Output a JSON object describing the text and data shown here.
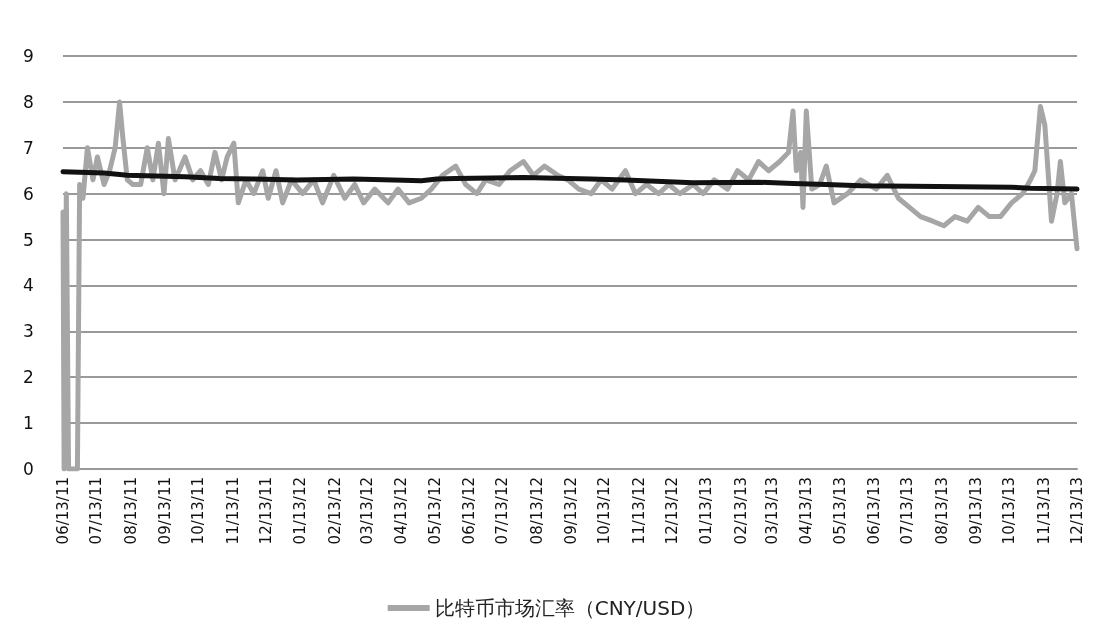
{
  "chart_data": {
    "type": "line",
    "legend": "bottom",
    "grid": "y",
    "marker": "none",
    "line_style": "solid",
    "ylim": [
      0,
      9
    ],
    "yticks": [
      0,
      1,
      2,
      3,
      4,
      5,
      6,
      7,
      8,
      9
    ],
    "xlim": [
      "2011-06-13",
      "2013-12-13"
    ],
    "xticks": [
      {
        "value": "2011-06-13",
        "label": "06/13/11"
      },
      {
        "value": "2011-07-13",
        "label": "07/13/11"
      },
      {
        "value": "2011-08-13",
        "label": "08/13/11"
      },
      {
        "value": "2011-09-13",
        "label": "09/13/11"
      },
      {
        "value": "2011-10-13",
        "label": "10/13/11"
      },
      {
        "value": "2011-11-13",
        "label": "11/13/11"
      },
      {
        "value": "2011-12-13",
        "label": "12/13/11"
      },
      {
        "value": "2012-01-13",
        "label": "01/13/12"
      },
      {
        "value": "2012-02-13",
        "label": "02/13/12"
      },
      {
        "value": "2012-03-13",
        "label": "03/13/12"
      },
      {
        "value": "2012-04-13",
        "label": "04/13/12"
      },
      {
        "value": "2012-05-13",
        "label": "05/13/12"
      },
      {
        "value": "2012-06-13",
        "label": "06/13/12"
      },
      {
        "value": "2012-07-13",
        "label": "07/13/12"
      },
      {
        "value": "2012-08-13",
        "label": "08/13/12"
      },
      {
        "value": "2012-09-13",
        "label": "09/13/12"
      },
      {
        "value": "2012-10-13",
        "label": "10/13/12"
      },
      {
        "value": "2012-11-13",
        "label": "11/13/12"
      },
      {
        "value": "2012-12-13",
        "label": "12/13/12"
      },
      {
        "value": "2013-01-13",
        "label": "01/13/13"
      },
      {
        "value": "2013-02-13",
        "label": "02/13/13"
      },
      {
        "value": "2013-03-13",
        "label": "03/13/13"
      },
      {
        "value": "2013-04-13",
        "label": "04/13/13"
      },
      {
        "value": "2013-05-13",
        "label": "05/13/13"
      },
      {
        "value": "2013-06-13",
        "label": "06/13/13"
      },
      {
        "value": "2013-07-13",
        "label": "07/13/13"
      },
      {
        "value": "2013-08-13",
        "label": "08/13/13"
      },
      {
        "value": "2013-09-13",
        "label": "09/13/13"
      },
      {
        "value": "2013-10-13",
        "label": "10/13/13"
      },
      {
        "value": "2013-11-13",
        "label": "11/13/13"
      },
      {
        "value": "2013-12-13",
        "label": "12/13/13"
      }
    ],
    "series": [
      {
        "name": "比特币市场汇率（CNY/USD）",
        "color": "#a6a6a6",
        "x": [
          "2011-06-13",
          "2011-06-14",
          "2011-06-16",
          "2011-06-18",
          "2011-06-26",
          "2011-06-28",
          "2011-07-01",
          "2011-07-05",
          "2011-07-10",
          "2011-07-14",
          "2011-07-20",
          "2011-07-25",
          "2011-07-30",
          "2011-08-03",
          "2011-08-06",
          "2011-08-10",
          "2011-08-15",
          "2011-08-22",
          "2011-08-28",
          "2011-09-02",
          "2011-09-07",
          "2011-09-12",
          "2011-09-16",
          "2011-09-22",
          "2011-10-01",
          "2011-10-08",
          "2011-10-15",
          "2011-10-22",
          "2011-10-28",
          "2011-11-03",
          "2011-11-08",
          "2011-11-14",
          "2011-11-18",
          "2011-11-25",
          "2011-12-02",
          "2011-12-10",
          "2011-12-15",
          "2011-12-22",
          "2011-12-28",
          "2012-01-05",
          "2012-01-15",
          "2012-01-25",
          "2012-02-02",
          "2012-02-12",
          "2012-02-22",
          "2012-03-02",
          "2012-03-10",
          "2012-03-20",
          "2012-04-01",
          "2012-04-10",
          "2012-04-20",
          "2012-05-01",
          "2012-05-10",
          "2012-05-20",
          "2012-06-01",
          "2012-06-10",
          "2012-06-20",
          "2012-06-28",
          "2012-07-10",
          "2012-07-20",
          "2012-08-01",
          "2012-08-10",
          "2012-08-20",
          "2012-09-01",
          "2012-09-10",
          "2012-09-20",
          "2012-10-01",
          "2012-10-10",
          "2012-10-20",
          "2012-11-01",
          "2012-11-10",
          "2012-11-20",
          "2012-12-01",
          "2012-12-10",
          "2012-12-20",
          "2013-01-01",
          "2013-01-10",
          "2013-01-20",
          "2013-02-01",
          "2013-02-10",
          "2013-02-20",
          "2013-03-01",
          "2013-03-10",
          "2013-03-20",
          "2013-03-28",
          "2013-04-01",
          "2013-04-04",
          "2013-04-08",
          "2013-04-10",
          "2013-04-13",
          "2013-04-18",
          "2013-04-25",
          "2013-05-01",
          "2013-05-08",
          "2013-05-20",
          "2013-06-01",
          "2013-06-15",
          "2013-06-25",
          "2013-07-05",
          "2013-07-15",
          "2013-07-25",
          "2013-08-05",
          "2013-08-15",
          "2013-08-25",
          "2013-09-05",
          "2013-09-15",
          "2013-09-25",
          "2013-10-05",
          "2013-10-15",
          "2013-10-25",
          "2013-11-01",
          "2013-11-05",
          "2013-11-10",
          "2013-11-14",
          "2013-11-20",
          "2013-11-25",
          "2013-11-28",
          "2013-12-02",
          "2013-12-08",
          "2013-12-13"
        ],
        "values": [
          5.6,
          0,
          6.0,
          0,
          0,
          6.2,
          5.9,
          7.0,
          6.3,
          6.8,
          6.2,
          6.5,
          7.0,
          8.0,
          7.2,
          6.3,
          6.2,
          6.2,
          7.0,
          6.3,
          7.1,
          6.0,
          7.2,
          6.3,
          6.8,
          6.3,
          6.5,
          6.2,
          6.9,
          6.3,
          6.8,
          7.1,
          5.8,
          6.3,
          6.0,
          6.5,
          5.9,
          6.5,
          5.8,
          6.3,
          6.0,
          6.3,
          5.8,
          6.4,
          5.9,
          6.2,
          5.8,
          6.1,
          5.8,
          6.1,
          5.8,
          5.9,
          6.1,
          6.4,
          6.6,
          6.2,
          6.0,
          6.3,
          6.2,
          6.5,
          6.7,
          6.4,
          6.6,
          6.4,
          6.3,
          6.1,
          6.0,
          6.3,
          6.1,
          6.5,
          6.0,
          6.2,
          6.0,
          6.2,
          6.0,
          6.2,
          6.0,
          6.3,
          6.1,
          6.5,
          6.3,
          6.7,
          6.5,
          6.7,
          6.9,
          7.8,
          6.5,
          6.9,
          5.7,
          7.8,
          6.1,
          6.2,
          6.6,
          5.8,
          6.0,
          6.3,
          6.1,
          6.4,
          5.9,
          5.7,
          5.5,
          5.4,
          5.3,
          5.5,
          5.4,
          5.7,
          5.5,
          5.5,
          5.8,
          6.0,
          6.3,
          6.5,
          7.9,
          7.5,
          5.4,
          6.0,
          6.7,
          5.8,
          6.0,
          4.8
        ]
      },
      {
        "color": "#111111",
        "x": [
          "2011-06-13",
          "2011-07-20",
          "2011-08-10",
          "2011-10-01",
          "2011-11-01",
          "2011-12-01",
          "2012-01-10",
          "2012-03-01",
          "2012-04-15",
          "2012-05-01",
          "2012-05-15",
          "2012-06-01",
          "2012-08-01",
          "2012-10-01",
          "2012-11-01",
          "2013-01-01",
          "2013-03-01",
          "2013-04-01",
          "2013-05-01",
          "2013-06-01",
          "2013-09-01",
          "2013-10-15",
          "2013-11-01",
          "2013-12-13"
        ],
        "values": [
          6.48,
          6.45,
          6.4,
          6.37,
          6.33,
          6.32,
          6.3,
          6.32,
          6.29,
          6.28,
          6.32,
          6.33,
          6.35,
          6.32,
          6.3,
          6.24,
          6.25,
          6.22,
          6.2,
          6.17,
          6.15,
          6.14,
          6.12,
          6.1
        ]
      }
    ]
  }
}
